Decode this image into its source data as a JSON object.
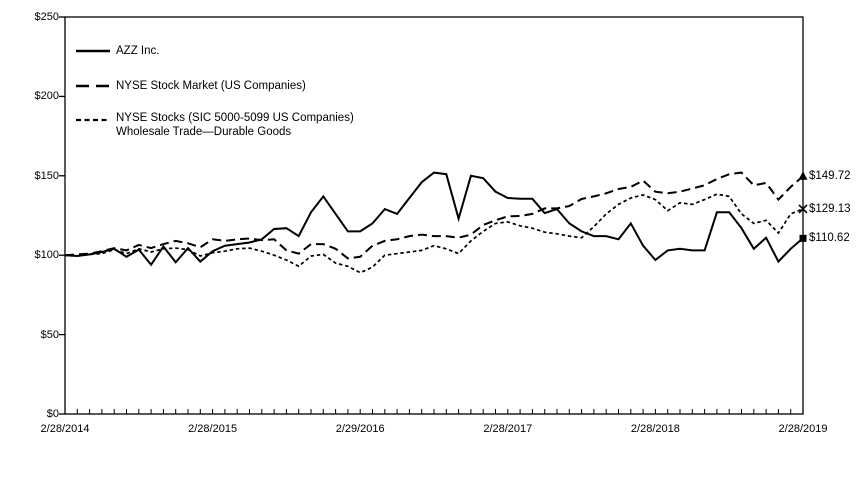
{
  "chart_data": {
    "type": "line",
    "title": "",
    "xlabel": "",
    "ylabel": "",
    "ylim": [
      0,
      250
    ],
    "grid": false,
    "legend_position": "top-left-inside",
    "y_ticks": [
      0,
      50,
      100,
      150,
      200,
      250
    ],
    "y_tick_labels": [
      "$0",
      "$50",
      "$100",
      "$150",
      "$200",
      "$250"
    ],
    "x_tick_labels": [
      "2/28/2014",
      "2/28/2015",
      "2/29/2016",
      "2/28/2017",
      "2/28/2018",
      "2/28/2019"
    ],
    "x_minor_tick_interval": "monthly",
    "points_per_series": 61,
    "line_color": "#000000",
    "background_color": "#ffffff",
    "series": [
      {
        "name": "AZZ Inc.",
        "style": "solid",
        "end_marker": "square",
        "end_label": "$110.62",
        "values": [
          100,
          99.5,
          100.5,
          102,
          104,
          99,
          103.5,
          94,
          105.5,
          95.5,
          104.5,
          96,
          102.5,
          106,
          107,
          108,
          110,
          116.5,
          117,
          112,
          127,
          137,
          126,
          115,
          115,
          120,
          129,
          126,
          136,
          146,
          152,
          151,
          123,
          150,
          148.5,
          140,
          136,
          135.5,
          135.5,
          126.5,
          129,
          120,
          115,
          112,
          112,
          110,
          120,
          106,
          97,
          103,
          104,
          103,
          103,
          127,
          127,
          117,
          104,
          111,
          96,
          104,
          110.62
        ]
      },
      {
        "name": "NYSE Stock Market (US Companies)",
        "style": "long-dash",
        "end_marker": "triangle",
        "end_label": "$149.72",
        "values": [
          100,
          100.5,
          101,
          102.5,
          104.5,
          103,
          106.5,
          104.5,
          107,
          109,
          107.5,
          105,
          110,
          109,
          110,
          110.5,
          109.5,
          110,
          103,
          101,
          107,
          107,
          104,
          98,
          99,
          106,
          109,
          110,
          112,
          113,
          112,
          112,
          111,
          113,
          119,
          122,
          124.5,
          124.7,
          126,
          129.5,
          129.5,
          131,
          135.4,
          137,
          139,
          141.7,
          143,
          147,
          140,
          139,
          140,
          142,
          144,
          148,
          151,
          152,
          144,
          145.5,
          135,
          143,
          149.72
        ]
      },
      {
        "name": "NYSE Stocks (SIC 5000-5099 US Companies)",
        "name_line2": "Wholesale Trade—Durable Goods",
        "style": "short-dash",
        "end_marker": "x",
        "end_label": "$129.13",
        "values": [
          100,
          99.5,
          100.5,
          101,
          103.5,
          101,
          104,
          102,
          104,
          104.5,
          103.5,
          99.5,
          101.5,
          102.5,
          104,
          104.5,
          102.5,
          100,
          97,
          93,
          99.5,
          100.5,
          95,
          93,
          89,
          92.5,
          100,
          101,
          102,
          103,
          106,
          104,
          101,
          109,
          115,
          120,
          121,
          118.5,
          117,
          114.5,
          113.5,
          112,
          111,
          118,
          126,
          132,
          136,
          138,
          135,
          128,
          133,
          132,
          135,
          138.5,
          137,
          126,
          120,
          122,
          114,
          126,
          129.13
        ]
      }
    ]
  }
}
